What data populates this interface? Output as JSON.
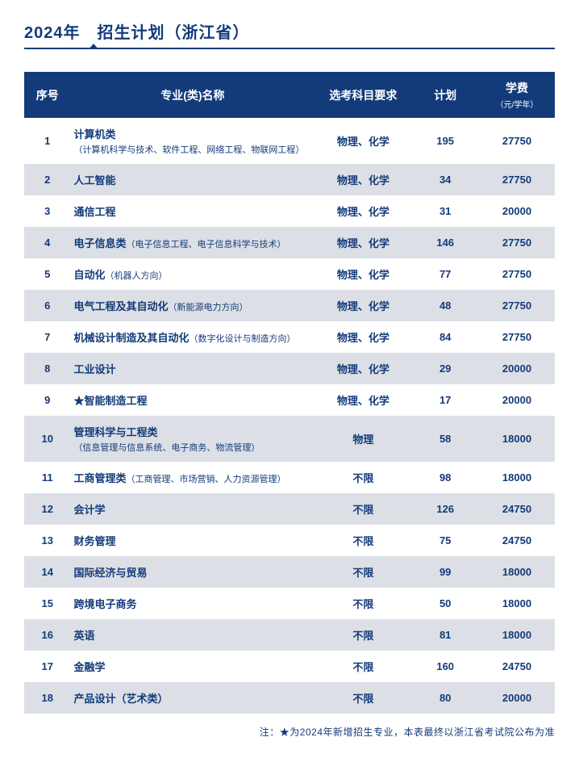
{
  "title": "2024年　招生计划（浙江省）",
  "colors": {
    "brand": "#133b7a",
    "row_alt": "#dcdfe5",
    "row_base": "#ffffff"
  },
  "columns": {
    "idx": "序号",
    "name": "专业(类)名称",
    "req": "选考科目要求",
    "plan": "计划",
    "fee": "学费",
    "fee_unit": "（元/学年）"
  },
  "rows": [
    {
      "idx": "1",
      "name": "计算机类",
      "note": "（计算机科学与技术、软件工程、网络工程、物联网工程）",
      "note_block": true,
      "req": "物理、化学",
      "plan": "195",
      "fee": "27750"
    },
    {
      "idx": "2",
      "name": "人工智能",
      "note": "",
      "req": "物理、化学",
      "plan": "34",
      "fee": "27750"
    },
    {
      "idx": "3",
      "name": "通信工程",
      "note": "",
      "req": "物理、化学",
      "plan": "31",
      "fee": "20000"
    },
    {
      "idx": "4",
      "name": "电子信息类",
      "note": "（电子信息工程、电子信息科学与技术）",
      "note_block": false,
      "req": "物理、化学",
      "plan": "146",
      "fee": "27750"
    },
    {
      "idx": "5",
      "name": "自动化",
      "note": "（机器人方向）",
      "note_block": false,
      "req": "物理、化学",
      "plan": "77",
      "fee": "27750"
    },
    {
      "idx": "6",
      "name": "电气工程及其自动化",
      "note": "（新能源电力方向）",
      "note_block": false,
      "req": "物理、化学",
      "plan": "48",
      "fee": "27750"
    },
    {
      "idx": "7",
      "name": "机械设计制造及其自动化",
      "note": "（数字化设计与制造方向）",
      "note_block": false,
      "req": "物理、化学",
      "plan": "84",
      "fee": "27750"
    },
    {
      "idx": "8",
      "name": "工业设计",
      "note": "",
      "req": "物理、化学",
      "plan": "29",
      "fee": "20000"
    },
    {
      "idx": "9",
      "name": "★智能制造工程",
      "note": "",
      "req": "物理、化学",
      "plan": "17",
      "fee": "20000"
    },
    {
      "idx": "10",
      "name": "管理科学与工程类",
      "note": "（信息管理与信息系统、电子商务、物流管理）",
      "note_block": true,
      "req": "物理",
      "plan": "58",
      "fee": "18000"
    },
    {
      "idx": "11",
      "name": "工商管理类",
      "note": "（工商管理、市场营销、人力资源管理）",
      "note_block": false,
      "req": "不限",
      "plan": "98",
      "fee": "18000"
    },
    {
      "idx": "12",
      "name": "会计学",
      "note": "",
      "req": "不限",
      "plan": "126",
      "fee": "24750"
    },
    {
      "idx": "13",
      "name": "财务管理",
      "note": "",
      "req": "不限",
      "plan": "75",
      "fee": "24750"
    },
    {
      "idx": "14",
      "name": "国际经济与贸易",
      "note": "",
      "req": "不限",
      "plan": "99",
      "fee": "18000"
    },
    {
      "idx": "15",
      "name": "跨境电子商务",
      "note": "",
      "req": "不限",
      "plan": "50",
      "fee": "18000"
    },
    {
      "idx": "16",
      "name": "英语",
      "note": "",
      "req": "不限",
      "plan": "81",
      "fee": "18000"
    },
    {
      "idx": "17",
      "name": "金融学",
      "note": "",
      "req": "不限",
      "plan": "160",
      "fee": "24750"
    },
    {
      "idx": "18",
      "name": "产品设计（艺术类）",
      "note": "",
      "req": "不限",
      "plan": "80",
      "fee": "20000"
    }
  ],
  "footnote": "注：★为2024年新增招生专业，本表最终以浙江省考试院公布为准"
}
